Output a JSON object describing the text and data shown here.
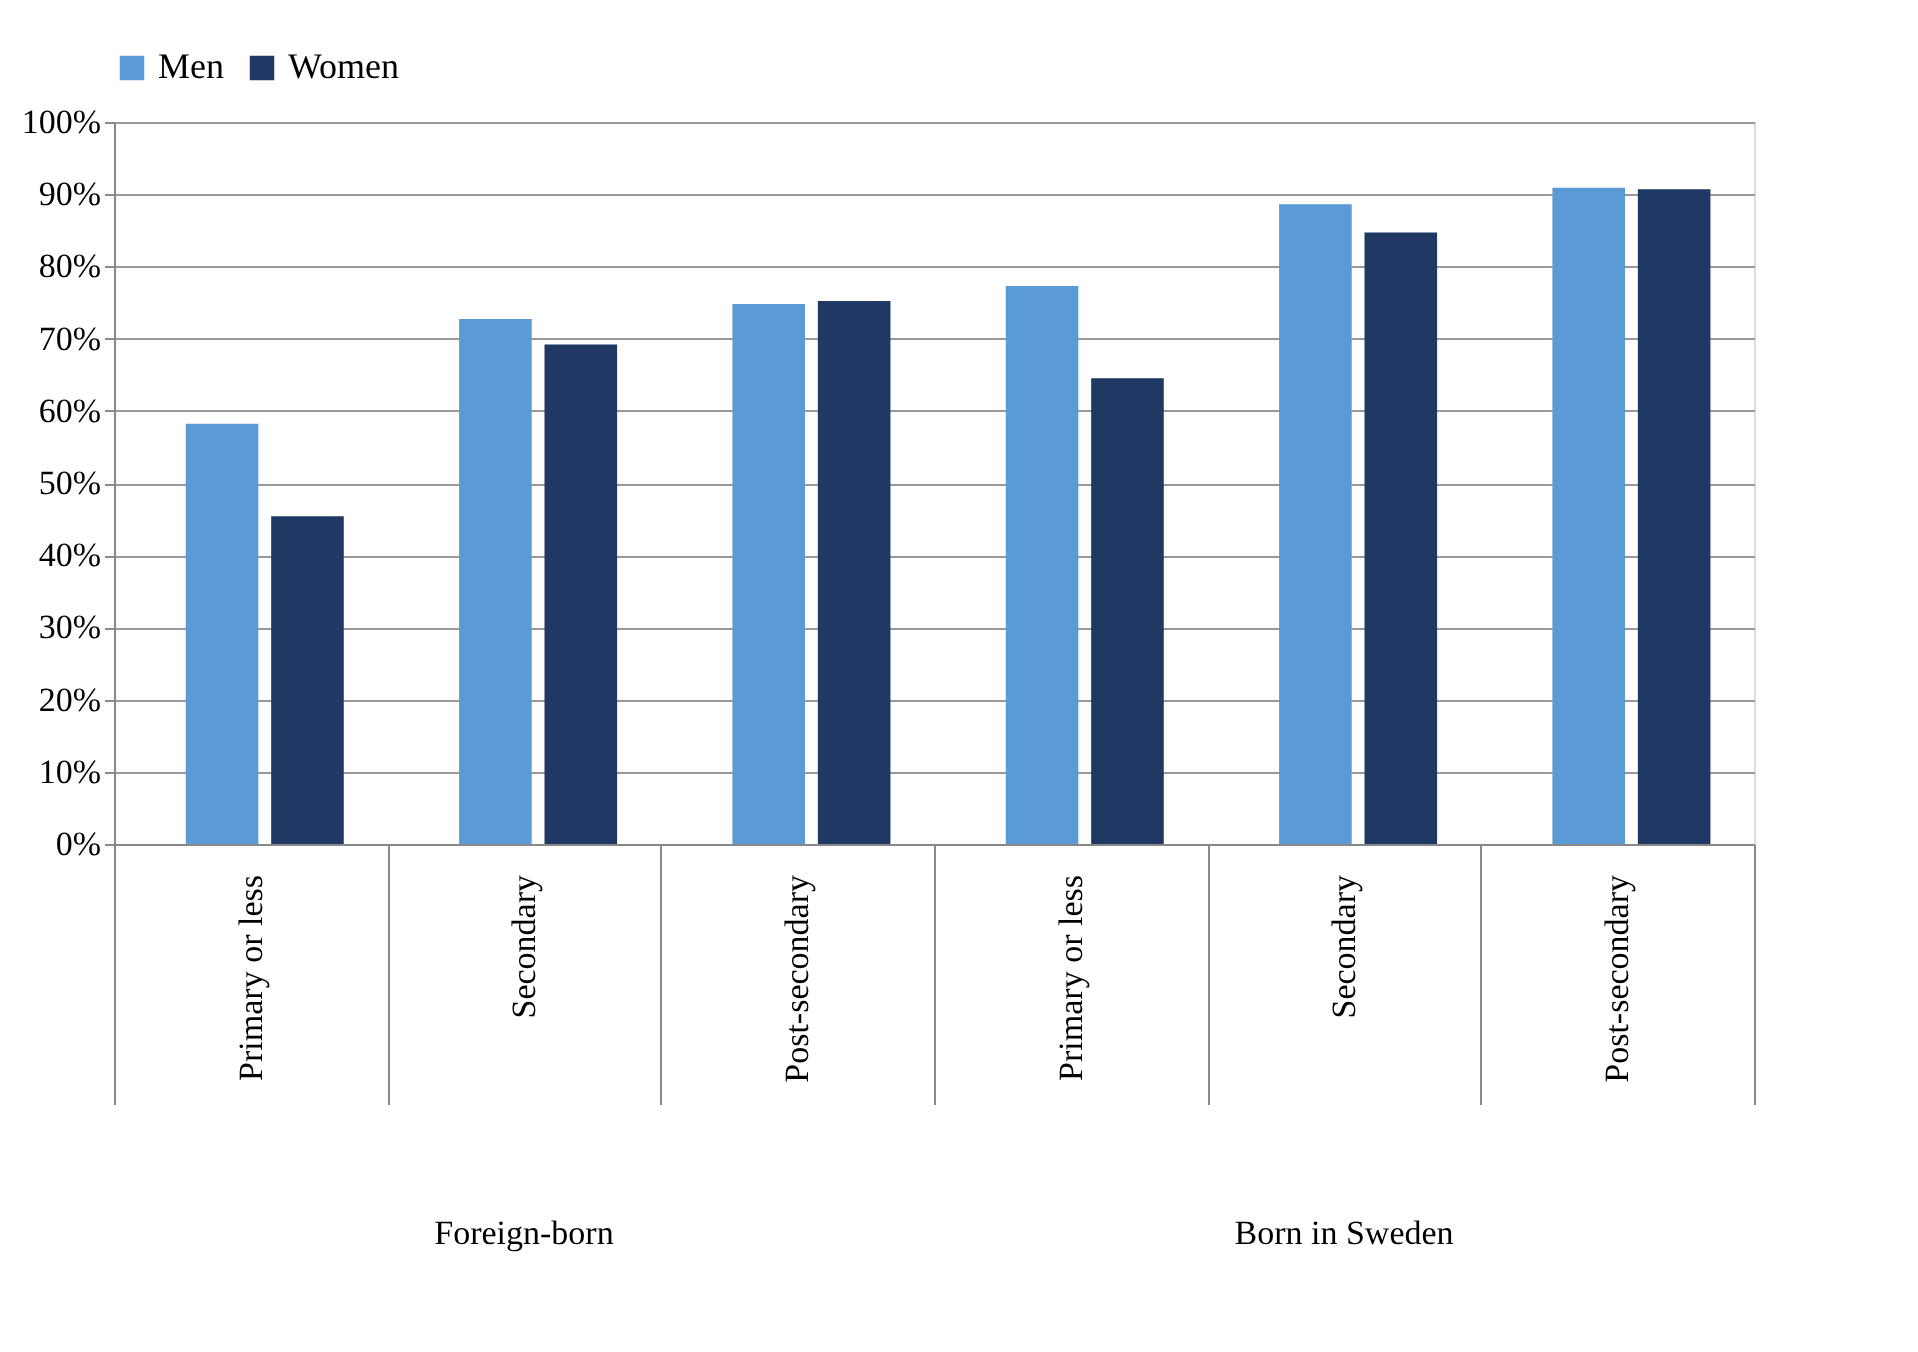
{
  "chart_data": {
    "type": "bar",
    "categories": [
      "Primary or less",
      "Secondary",
      "Post-secondary",
      "Primary or less",
      "Secondary",
      "Post-secondary"
    ],
    "series": [
      {
        "name": "Men",
        "color": "#5b9bd5",
        "values": [
          58.2,
          72.7,
          74.8,
          77.3,
          88.6,
          90.9
        ]
      },
      {
        "name": "Women",
        "color": "#1f3864",
        "values": [
          45.4,
          69.2,
          75.2,
          64.5,
          84.7,
          90.7
        ]
      }
    ],
    "ylim": [
      0,
      100
    ],
    "yticks": [
      {
        "value": 0,
        "label": "0%"
      },
      {
        "value": 10,
        "label": "10%"
      },
      {
        "value": 20,
        "label": "20%"
      },
      {
        "value": 30,
        "label": "30%"
      },
      {
        "value": 40,
        "label": "40%"
      },
      {
        "value": 50,
        "label": "50%"
      },
      {
        "value": 60,
        "label": "60%"
      },
      {
        "value": 70,
        "label": "70%"
      },
      {
        "value": 80,
        "label": "80%"
      },
      {
        "value": 90,
        "label": "90%"
      },
      {
        "value": 100,
        "label": "100%"
      }
    ],
    "annotations": [
      "Foreign-born",
      "Born in Sweden"
    ],
    "grid": "y",
    "legend": "top"
  }
}
